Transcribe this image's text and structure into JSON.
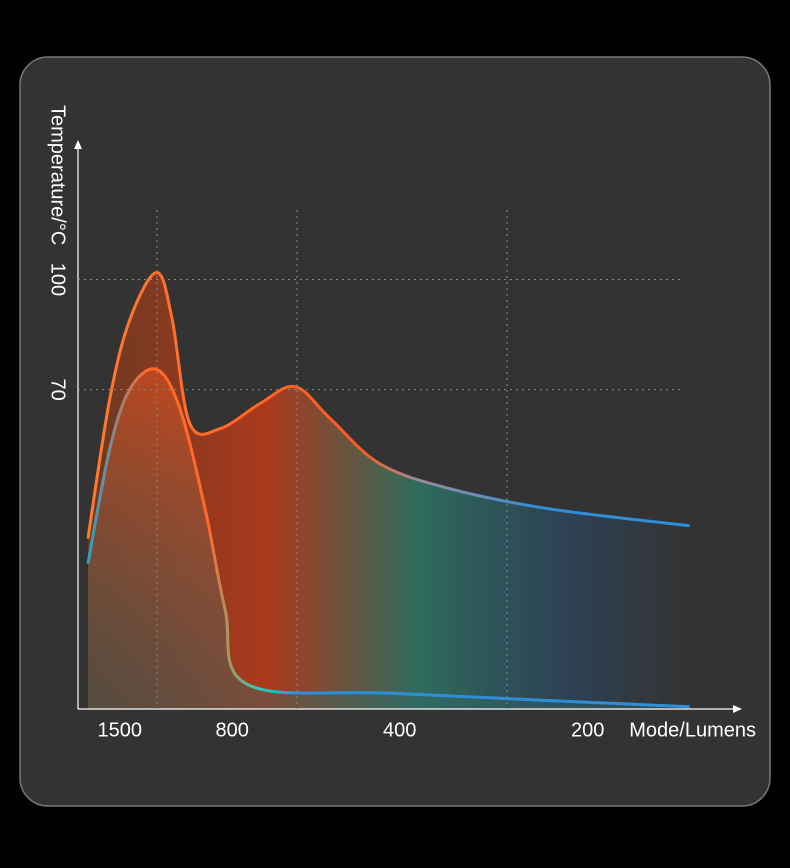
{
  "chart_data": {
    "type": "line",
    "x_label": "Mode/Lumens",
    "y_label": "Temperature/°C",
    "xlim": [
      0,
      100
    ],
    "ylim": [
      -17,
      138
    ],
    "xticks": [
      {
        "value": 6.3,
        "label": "1500"
      },
      {
        "value": 23.3,
        "label": "800"
      },
      {
        "value": 48.6,
        "label": "400"
      },
      {
        "value": 77,
        "label": "200"
      }
    ],
    "yticks": [
      70,
      100
    ],
    "grid": true,
    "series": [
      {
        "color": "#ff5a1f",
        "x": [
          1.5,
          4.8,
          7.9,
          11.9,
          14.2,
          16.9,
          21.5,
          27.5,
          32.8,
          38.1,
          45.6,
          56.2,
          71.3,
          92.4
        ],
        "values": [
          29.4,
          67.5,
          89.4,
          101.9,
          89.4,
          60.7,
          59.4,
          66.2,
          70.8,
          62.1,
          49.8,
          43,
          37.5,
          32.9
        ]
      },
      {
        "color": "#ff6a2a",
        "x": [
          1.5,
          4.8,
          7.9,
          11.9,
          15.4,
          19.2,
          22.2,
          25.7,
          48.6,
          92.4
        ],
        "values": [
          22.6,
          53.9,
          70.3,
          75.5,
          64.8,
          37.5,
          10.3,
          -10.4,
          -12.8,
          -16.4
        ]
      }
    ]
  }
}
